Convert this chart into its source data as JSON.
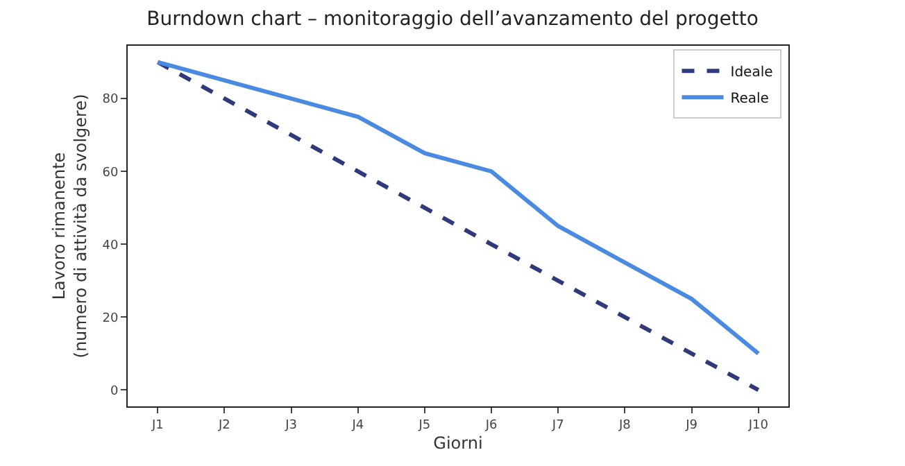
{
  "chart_data": {
    "type": "line",
    "title": "Burndown chart – monitoraggio dell’avanzamento del progetto",
    "xlabel": "Giorni",
    "ylabel": "Lavoro rimanente\n(numero di attività da svolgere)",
    "categories": [
      "J1",
      "J2",
      "J3",
      "J4",
      "J5",
      "J6",
      "J7",
      "J8",
      "J9",
      "J10"
    ],
    "series": [
      {
        "name": "Ideale",
        "color": "#2e3a7a",
        "line_style": "dashed",
        "values": [
          90,
          80,
          70,
          60,
          50,
          40,
          30,
          20,
          10,
          0
        ]
      },
      {
        "name": "Reale",
        "color": "#4a8ae0",
        "line_style": "solid",
        "values": [
          90,
          85,
          80,
          75,
          65,
          60,
          45,
          35,
          25,
          10
        ]
      }
    ],
    "ylim": [
      -4.5,
      94.5
    ],
    "yticks": [
      0,
      20,
      40,
      60,
      80
    ],
    "legend": "top right",
    "marker": "none"
  }
}
